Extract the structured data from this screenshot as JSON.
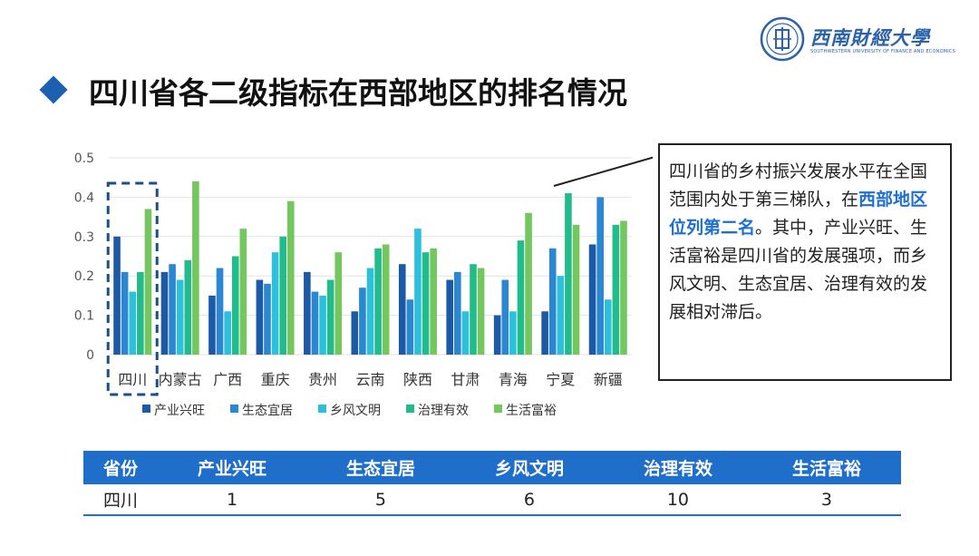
{
  "logo": {
    "name_cn": "西南財經大學",
    "name_en": "SOUTHWESTERN UNIVERSITY OF FINANCE AND ECONOMICS"
  },
  "title": "四川省各二级指标在西部地区的排名情况",
  "colors": {
    "accent": "#1f6ec9",
    "series": [
      "#1c5aa8",
      "#2b87d1",
      "#2cc0dc",
      "#21bb8c",
      "#74c65f"
    ]
  },
  "chart_data": {
    "type": "bar",
    "categories": [
      "四川",
      "内蒙古",
      "广西",
      "重庆",
      "贵州",
      "云南",
      "陕西",
      "甘肃",
      "青海",
      "宁夏",
      "新疆"
    ],
    "ylim": [
      0,
      0.5
    ],
    "yticks": [
      "0",
      "0.1",
      "0.2",
      "0.3",
      "0.4",
      "0.5"
    ],
    "highlight_category": "四川",
    "series": [
      {
        "name": "产业兴旺",
        "values": [
          0.3,
          0.21,
          0.15,
          0.19,
          0.21,
          0.11,
          0.23,
          0.19,
          0.1,
          0.11,
          0.28
        ]
      },
      {
        "name": "生态宜居",
        "values": [
          0.21,
          0.23,
          0.22,
          0.18,
          0.16,
          0.17,
          0.14,
          0.21,
          0.19,
          0.27,
          0.4
        ]
      },
      {
        "name": "乡风文明",
        "values": [
          0.16,
          0.19,
          0.11,
          0.26,
          0.15,
          0.22,
          0.32,
          0.11,
          0.11,
          0.2,
          0.14
        ]
      },
      {
        "name": "治理有效",
        "values": [
          0.21,
          0.24,
          0.25,
          0.3,
          0.19,
          0.27,
          0.26,
          0.23,
          0.29,
          0.41,
          0.33
        ]
      },
      {
        "name": "生活富裕",
        "values": [
          0.37,
          0.44,
          0.32,
          0.39,
          0.26,
          0.28,
          0.27,
          0.22,
          0.36,
          0.33,
          0.34
        ]
      }
    ]
  },
  "callout": {
    "line1": "四川省的乡村振兴发展水平在全国范围内处于第三梯队，在",
    "highlight": "西部地区位列第二名",
    "line2": "。其中，产业兴旺、生活富裕是四川省的发展强项，而乡风文明、生态宜居、治理有效的发展相对滞后。"
  },
  "table": {
    "headers": [
      "省份",
      "产业兴旺",
      "生态宜居",
      "乡风文明",
      "治理有效",
      "生活富裕"
    ],
    "row": [
      "四川",
      "1",
      "5",
      "6",
      "10",
      "3"
    ]
  }
}
